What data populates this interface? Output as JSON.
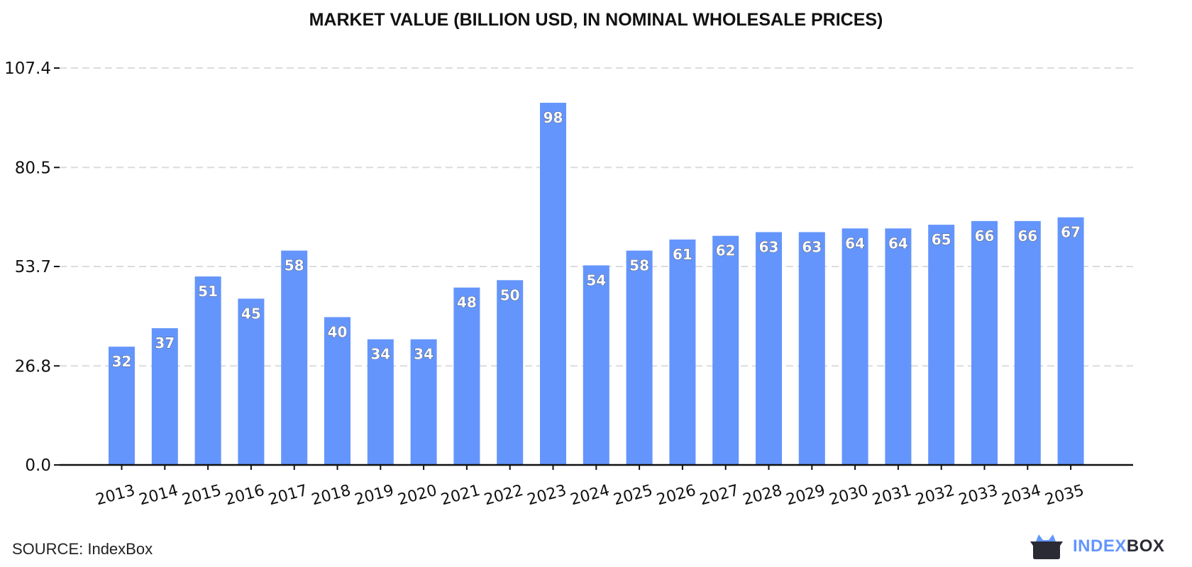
{
  "chart_data": {
    "type": "bar",
    "title": "MARKET VALUE (BILLION USD, IN NOMINAL WHOLESALE PRICES)",
    "xlabel": "",
    "ylabel": "",
    "categories": [
      "2013",
      "2014",
      "2015",
      "2016",
      "2017",
      "2018",
      "2019",
      "2020",
      "2021",
      "2022",
      "2023",
      "2024",
      "2025",
      "2026",
      "2027",
      "2028",
      "2029",
      "2030",
      "2031",
      "2032",
      "2033",
      "2034",
      "2035"
    ],
    "values": [
      32,
      37,
      51,
      45,
      58,
      40,
      34,
      34,
      48,
      50,
      98,
      54,
      58,
      61,
      62,
      63,
      63,
      64,
      64,
      65,
      66,
      66,
      67
    ],
    "data_labels": [
      "32",
      "37",
      "51",
      "45",
      "58",
      "40",
      "34",
      "34",
      "48",
      "50",
      "98",
      "54",
      "58",
      "61",
      "62",
      "63",
      "63",
      "64",
      "64",
      "65",
      "66",
      "66",
      "67"
    ],
    "yticks": [
      "0.0",
      "26.8",
      "53.7",
      "80.5",
      "107.4"
    ],
    "ylim": [
      0,
      107.4
    ],
    "grid": "horizontal dashed",
    "bar_color": "#6495fc"
  },
  "footer": {
    "source": "SOURCE: IndexBox",
    "logo_part1": "INDEX",
    "logo_part2": "BOX"
  }
}
